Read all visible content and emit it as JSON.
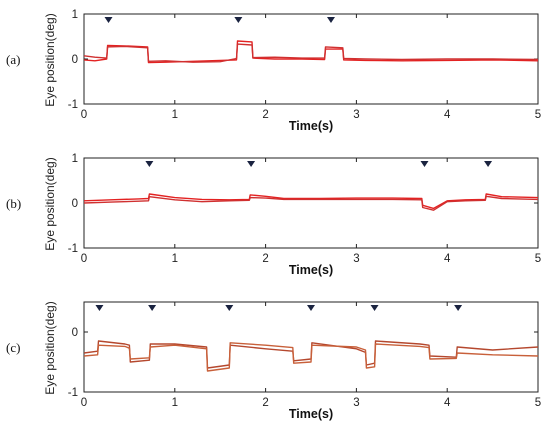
{
  "chart_data": [
    {
      "type": "line",
      "panel_label": "(a)",
      "xlabel": "Time(s)",
      "ylabel": "Eye position(deg)",
      "xlim": [
        0,
        5
      ],
      "ylim": [
        -1,
        1
      ],
      "xticks": [
        "0",
        "1",
        "2",
        "3",
        "4",
        "5"
      ],
      "yticks": [
        "-1",
        "0",
        "1"
      ],
      "grid": false,
      "markers": [
        0.27,
        1.7,
        2.72
      ],
      "series": [
        {
          "color": "#e32222",
          "x": [
            0,
            0.12,
            0.25,
            0.26,
            0.45,
            0.7,
            0.71,
            0.9,
            1.2,
            1.5,
            1.68,
            1.69,
            1.85,
            1.86,
            2.1,
            2.4,
            2.65,
            2.66,
            2.85,
            2.86,
            3.1,
            3.5,
            4.0,
            4.5,
            5.0
          ],
          "y": [
            -0.02,
            -0.04,
            0.0,
            0.3,
            0.29,
            0.27,
            -0.08,
            -0.07,
            -0.05,
            -0.03,
            -0.02,
            0.4,
            0.38,
            0.02,
            0.0,
            0.0,
            -0.01,
            0.22,
            0.22,
            -0.02,
            -0.03,
            -0.04,
            -0.03,
            -0.02,
            -0.04
          ]
        },
        {
          "color": "#d03030",
          "x": [
            0,
            0.12,
            0.25,
            0.26,
            0.45,
            0.7,
            0.71,
            0.9,
            1.2,
            1.5,
            1.68,
            1.69,
            1.85,
            1.86,
            2.1,
            2.4,
            2.65,
            2.66,
            2.85,
            2.86,
            3.1,
            3.5,
            4.0,
            4.5,
            5.0
          ],
          "y": [
            0.07,
            0.04,
            0.02,
            0.27,
            0.28,
            0.25,
            -0.05,
            -0.04,
            -0.07,
            -0.06,
            0.01,
            0.33,
            0.31,
            0.03,
            0.04,
            0.02,
            0.02,
            0.27,
            0.25,
            0.01,
            0.0,
            -0.01,
            0.0,
            0.0,
            -0.01
          ]
        }
      ]
    },
    {
      "type": "line",
      "panel_label": "(b)",
      "xlabel": "Time(s)",
      "ylabel": "Eye position(deg)",
      "xlim": [
        0,
        5
      ],
      "ylim": [
        -1,
        1
      ],
      "xticks": [
        "0",
        "1",
        "2",
        "3",
        "4",
        "5"
      ],
      "yticks": [
        "-1",
        "0",
        "1"
      ],
      "grid": false,
      "markers": [
        0.72,
        1.84,
        3.75,
        4.45
      ],
      "series": [
        {
          "color": "#e32222",
          "x": [
            0,
            0.3,
            0.6,
            0.71,
            0.72,
            1.0,
            1.3,
            1.6,
            1.82,
            1.83,
            2.0,
            2.2,
            2.6,
            3.0,
            3.4,
            3.72,
            3.73,
            3.85,
            4.0,
            4.2,
            4.42,
            4.43,
            4.6,
            5.0
          ],
          "y": [
            0.05,
            0.07,
            0.09,
            0.1,
            0.2,
            0.12,
            0.08,
            0.07,
            0.08,
            0.18,
            0.15,
            0.1,
            0.1,
            0.11,
            0.11,
            0.1,
            -0.05,
            -0.12,
            0.05,
            0.07,
            0.08,
            0.2,
            0.14,
            0.12
          ]
        },
        {
          "color": "#d03030",
          "x": [
            0,
            0.3,
            0.6,
            0.71,
            0.72,
            1.0,
            1.3,
            1.6,
            1.82,
            1.83,
            2.0,
            2.2,
            2.6,
            3.0,
            3.4,
            3.72,
            3.73,
            3.85,
            4.0,
            4.2,
            4.42,
            4.43,
            4.6,
            5.0
          ],
          "y": [
            0.0,
            0.02,
            0.04,
            0.05,
            0.14,
            0.07,
            0.03,
            0.05,
            0.06,
            0.12,
            0.11,
            0.08,
            0.08,
            0.08,
            0.08,
            0.07,
            -0.1,
            -0.16,
            0.03,
            0.05,
            0.06,
            0.15,
            0.1,
            0.08
          ]
        }
      ]
    },
    {
      "type": "line",
      "panel_label": "(c)",
      "xlabel": "Time(s)",
      "ylabel": "Eye position(deg)",
      "xlim": [
        0,
        5
      ],
      "ylim": [
        -1,
        0.5
      ],
      "xticks": [
        "0",
        "1",
        "2",
        "3",
        "4",
        "5"
      ],
      "yticks": [
        "-1",
        "0"
      ],
      "grid": false,
      "markers": [
        0.17,
        0.75,
        1.6,
        2.5,
        3.2,
        4.12
      ],
      "series": [
        {
          "color": "#b5482e",
          "x": [
            0,
            0.15,
            0.16,
            0.45,
            0.5,
            0.51,
            0.72,
            0.73,
            1.0,
            1.35,
            1.36,
            1.6,
            1.61,
            2.0,
            2.3,
            2.31,
            2.5,
            2.51,
            3.0,
            3.1,
            3.11,
            3.2,
            3.21,
            3.7,
            3.8,
            3.81,
            4.1,
            4.11,
            4.5,
            5.0
          ],
          "y": [
            -0.35,
            -0.32,
            -0.15,
            -0.2,
            -0.22,
            -0.5,
            -0.47,
            -0.2,
            -0.2,
            -0.25,
            -0.6,
            -0.55,
            -0.22,
            -0.28,
            -0.32,
            -0.48,
            -0.45,
            -0.18,
            -0.28,
            -0.34,
            -0.55,
            -0.52,
            -0.15,
            -0.2,
            -0.22,
            -0.4,
            -0.42,
            -0.25,
            -0.3,
            -0.25
          ]
        },
        {
          "color": "#c8603a",
          "x": [
            0,
            0.15,
            0.16,
            0.45,
            0.5,
            0.51,
            0.72,
            0.73,
            1.0,
            1.35,
            1.36,
            1.6,
            1.61,
            2.0,
            2.3,
            2.31,
            2.5,
            2.51,
            3.0,
            3.1,
            3.11,
            3.2,
            3.21,
            3.7,
            3.8,
            3.81,
            4.1,
            4.11,
            4.5,
            5.0
          ],
          "y": [
            -0.4,
            -0.38,
            -0.22,
            -0.24,
            -0.27,
            -0.45,
            -0.43,
            -0.25,
            -0.22,
            -0.28,
            -0.65,
            -0.6,
            -0.18,
            -0.22,
            -0.26,
            -0.52,
            -0.5,
            -0.22,
            -0.25,
            -0.3,
            -0.6,
            -0.58,
            -0.2,
            -0.24,
            -0.26,
            -0.45,
            -0.44,
            -0.35,
            -0.38,
            -0.4
          ]
        }
      ]
    }
  ]
}
